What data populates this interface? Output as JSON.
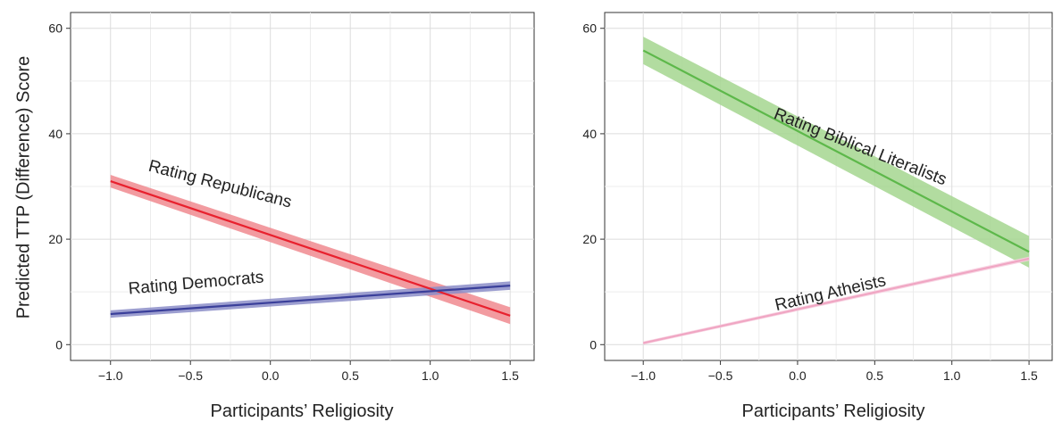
{
  "ylabel": "Predicted TTP (Difference) Score",
  "chart_data": [
    {
      "type": "line",
      "panel": "left",
      "xlabel": "Participants’ Religiosity",
      "ylabel": "Predicted TTP (Difference) Score",
      "xlim": [
        -1.25,
        1.65
      ],
      "ylim": [
        -3,
        63
      ],
      "xticks": [
        -1.0,
        -0.5,
        0.0,
        0.5,
        1.0,
        1.5
      ],
      "xtick_labels": [
        "−1.0",
        "−0.5",
        "0.0",
        "0.5",
        "1.0",
        "1.5"
      ],
      "yticks": [
        0,
        20,
        40,
        60
      ],
      "ytick_labels": [
        "0",
        "20",
        "40",
        "60"
      ],
      "grid": true,
      "series": [
        {
          "name": "Rating Republicans",
          "color": "#e8212e",
          "band_color": "#f08a8f",
          "x": [
            -1.0,
            1.5
          ],
          "y": [
            31.0,
            5.5
          ],
          "ci_half": [
            1.2,
            1.6
          ]
        },
        {
          "name": "Rating Democrats",
          "color": "#3a3f9a",
          "band_color": "#8b8dc8",
          "x": [
            -1.0,
            1.5
          ],
          "y": [
            5.8,
            11.2
          ],
          "ci_half": [
            0.7,
            0.8
          ]
        }
      ]
    },
    {
      "type": "line",
      "panel": "right",
      "xlabel": "Participants’ Religiosity",
      "xlim": [
        -1.25,
        1.65
      ],
      "ylim": [
        -3,
        63
      ],
      "xticks": [
        -1.0,
        -0.5,
        0.0,
        0.5,
        1.0,
        1.5
      ],
      "xtick_labels": [
        "−1.0",
        "−0.5",
        "0.0",
        "0.5",
        "1.0",
        "1.5"
      ],
      "yticks": [
        0,
        20,
        40,
        60
      ],
      "ytick_labels": [
        "0",
        "20",
        "40",
        "60"
      ],
      "grid": true,
      "series": [
        {
          "name": "Rating Biblical Literalists",
          "color": "#5db84a",
          "band_color": "#a5d68f",
          "x": [
            -1.0,
            1.5
          ],
          "y": [
            55.8,
            17.6
          ],
          "ci_half": [
            2.6,
            3.0
          ]
        },
        {
          "name": "Rating Atheists",
          "color": "#f0a6c3",
          "band_color": "#f7cfdf",
          "x": [
            -1.0,
            1.5
          ],
          "y": [
            0.3,
            16.3
          ],
          "ci_half": [
            0.3,
            0.4
          ]
        }
      ]
    }
  ]
}
